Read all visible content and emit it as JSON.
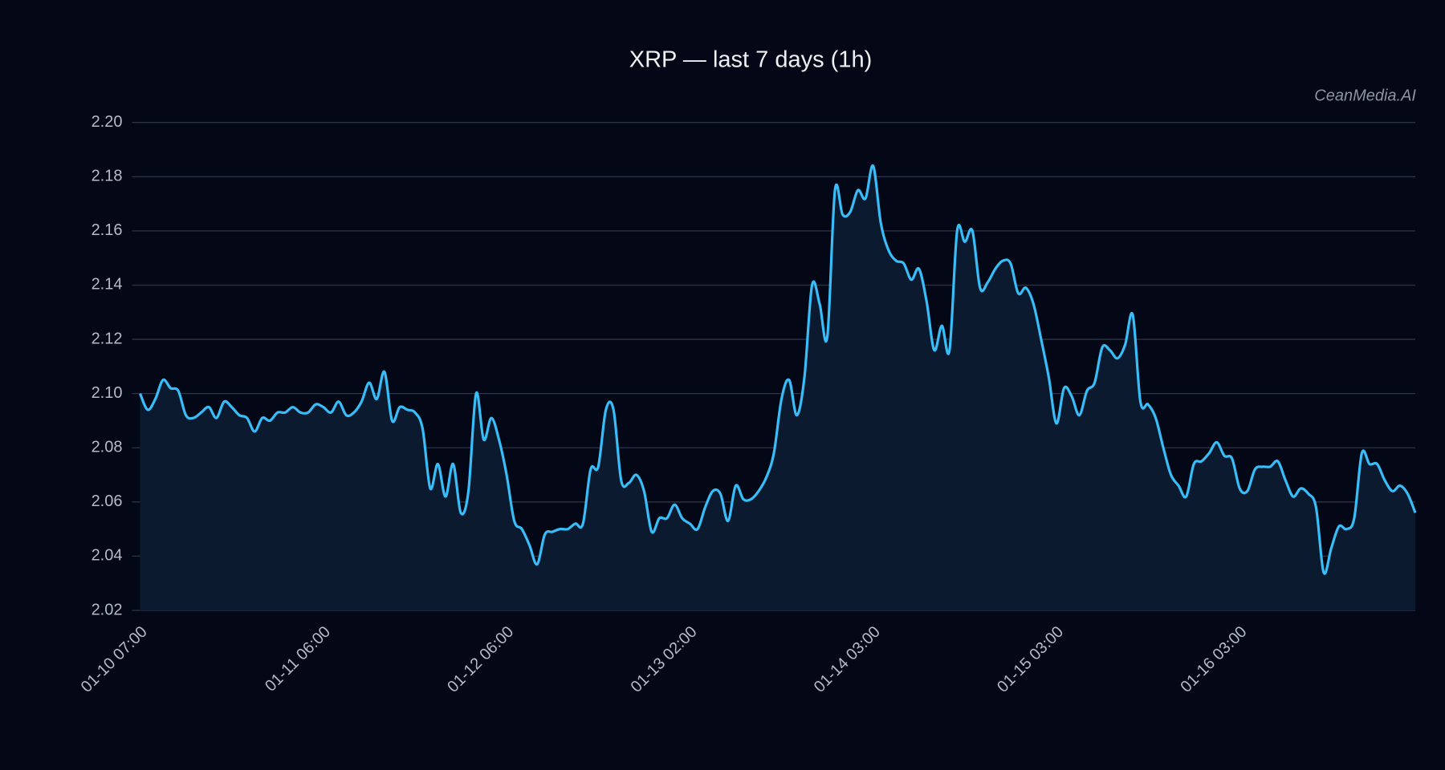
{
  "chart_data": {
    "type": "area-line",
    "title": "XRP — last 7 days (1h)",
    "watermark": "CeanMedia.AI",
    "categories": [
      "01-10 07:00",
      null,
      null,
      null,
      null,
      null,
      null,
      null,
      null,
      null,
      null,
      null,
      null,
      null,
      null,
      null,
      null,
      null,
      null,
      null,
      null,
      null,
      null,
      null,
      "01-11 06:00",
      null,
      null,
      null,
      null,
      null,
      null,
      null,
      null,
      null,
      null,
      null,
      null,
      null,
      null,
      null,
      null,
      null,
      null,
      null,
      null,
      null,
      null,
      null,
      "01-12 06:00",
      null,
      null,
      null,
      null,
      null,
      null,
      null,
      null,
      null,
      null,
      null,
      null,
      null,
      null,
      null,
      null,
      null,
      null,
      null,
      null,
      null,
      null,
      null,
      "01-13 02:00",
      null,
      null,
      null,
      null,
      null,
      null,
      null,
      null,
      null,
      null,
      null,
      null,
      null,
      null,
      null,
      null,
      null,
      null,
      null,
      null,
      null,
      null,
      null,
      "01-14 03:00",
      null,
      null,
      null,
      null,
      null,
      null,
      null,
      null,
      null,
      null,
      null,
      null,
      null,
      null,
      null,
      null,
      null,
      null,
      null,
      null,
      null,
      null,
      null,
      "01-15 03:00",
      null,
      null,
      null,
      null,
      null,
      null,
      null,
      null,
      null,
      null,
      null,
      null,
      null,
      null,
      null,
      null,
      null,
      null,
      null,
      null,
      null,
      null,
      null,
      "01-16 03:00",
      null,
      null,
      null,
      null,
      null,
      null,
      null,
      null,
      null,
      null,
      null,
      null,
      null,
      null,
      null,
      null,
      null,
      null,
      null,
      null,
      null,
      null,
      null
    ],
    "values": [
      2.1,
      2.094,
      2.098,
      2.105,
      2.102,
      2.101,
      2.092,
      2.091,
      2.093,
      2.095,
      2.091,
      2.097,
      2.095,
      2.092,
      2.091,
      2.086,
      2.091,
      2.09,
      2.093,
      2.093,
      2.095,
      2.093,
      2.093,
      2.096,
      2.095,
      2.093,
      2.097,
      2.092,
      2.093,
      2.097,
      2.104,
      2.098,
      2.108,
      2.09,
      2.095,
      2.094,
      2.093,
      2.087,
      2.065,
      2.074,
      2.062,
      2.074,
      2.056,
      2.064,
      2.1,
      2.083,
      2.091,
      2.083,
      2.07,
      2.053,
      2.05,
      2.044,
      2.037,
      2.048,
      2.049,
      2.05,
      2.05,
      2.052,
      2.052,
      2.072,
      2.073,
      2.094,
      2.094,
      2.068,
      2.067,
      2.07,
      2.064,
      2.049,
      2.054,
      2.054,
      2.059,
      2.054,
      2.052,
      2.05,
      2.058,
      2.064,
      2.063,
      2.053,
      2.066,
      2.061,
      2.061,
      2.064,
      2.069,
      2.078,
      2.098,
      2.105,
      2.092,
      2.106,
      2.14,
      2.133,
      2.121,
      2.175,
      2.166,
      2.167,
      2.175,
      2.172,
      2.184,
      2.163,
      2.153,
      2.149,
      2.148,
      2.142,
      2.146,
      2.134,
      2.116,
      2.125,
      2.116,
      2.16,
      2.156,
      2.16,
      2.139,
      2.141,
      2.146,
      2.149,
      2.148,
      2.137,
      2.139,
      2.133,
      2.12,
      2.106,
      2.089,
      2.102,
      2.099,
      2.092,
      2.101,
      2.104,
      2.117,
      2.116,
      2.113,
      2.118,
      2.129,
      2.097,
      2.096,
      2.091,
      2.08,
      2.07,
      2.066,
      2.062,
      2.074,
      2.075,
      2.078,
      2.082,
      2.077,
      2.076,
      2.065,
      2.064,
      2.072,
      2.073,
      2.073,
      2.075,
      2.068,
      2.062,
      2.065,
      2.063,
      2.058,
      2.034,
      2.043,
      2.051,
      2.05,
      2.054,
      2.078,
      2.074,
      2.074,
      2.068,
      2.064,
      2.066,
      2.063,
      2.056
    ],
    "color": "#38bdf8",
    "fill_color": "#0b1a2e",
    "ylim": [
      2.02,
      2.2
    ],
    "yticks": [
      2.02,
      2.04,
      2.06,
      2.08,
      {
        "value": 2.1,
        "label": "2.10"
      },
      2.12,
      2.14,
      2.16,
      2.18,
      {
        "value": 2.2,
        "label": "2.20"
      }
    ],
    "grid": true
  }
}
